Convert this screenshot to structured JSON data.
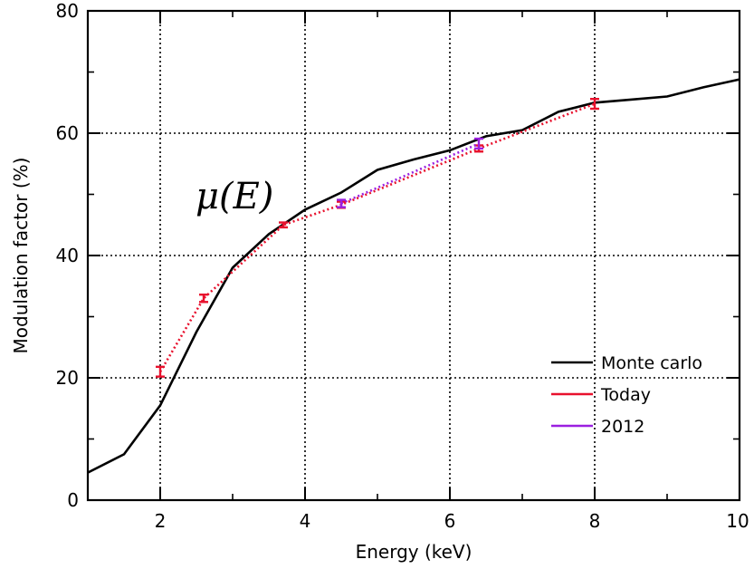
{
  "chart_data": {
    "type": "line",
    "xlabel": "Energy (keV)",
    "ylabel": "Modulation factor (%)",
    "xlim": [
      1,
      10
    ],
    "ylim": [
      0,
      80
    ],
    "xticks": [
      2,
      4,
      6,
      8,
      10
    ],
    "yticks": [
      0,
      20,
      40,
      60,
      80
    ],
    "grid": "dotted at major ticks",
    "legend_position": "bottom-right",
    "annotation": "μ(E)",
    "series": [
      {
        "name": "Monte carlo",
        "color": "#000000",
        "style": "solid",
        "x": [
          1.0,
          1.5,
          2.0,
          2.5,
          3.0,
          3.5,
          4.0,
          4.5,
          5.0,
          5.5,
          6.0,
          6.5,
          7.0,
          7.5,
          8.0,
          8.5,
          9.0,
          9.5,
          10.0
        ],
        "y": [
          4.5,
          7.5,
          15.5,
          27.5,
          38.0,
          43.5,
          47.5,
          50.3,
          54.0,
          55.7,
          57.2,
          59.5,
          60.5,
          63.5,
          65.0,
          65.5,
          66.0,
          67.5,
          68.8
        ]
      },
      {
        "name": "Today",
        "color": "#e8112d",
        "style": "dotted",
        "x": [
          2.0,
          2.6,
          3.7,
          4.5,
          6.4,
          8.0
        ],
        "y": [
          21.0,
          33.0,
          45.0,
          48.3,
          57.5,
          64.8
        ],
        "err": [
          0.8,
          0.6,
          0.4,
          0.5,
          0.5,
          0.8
        ]
      },
      {
        "name": "2012",
        "color": "#9b1fe0",
        "style": "dotted",
        "x": [
          4.5,
          6.4
        ],
        "y": [
          48.5,
          58.3
        ],
        "err": [
          0.6,
          0.8
        ]
      }
    ]
  }
}
